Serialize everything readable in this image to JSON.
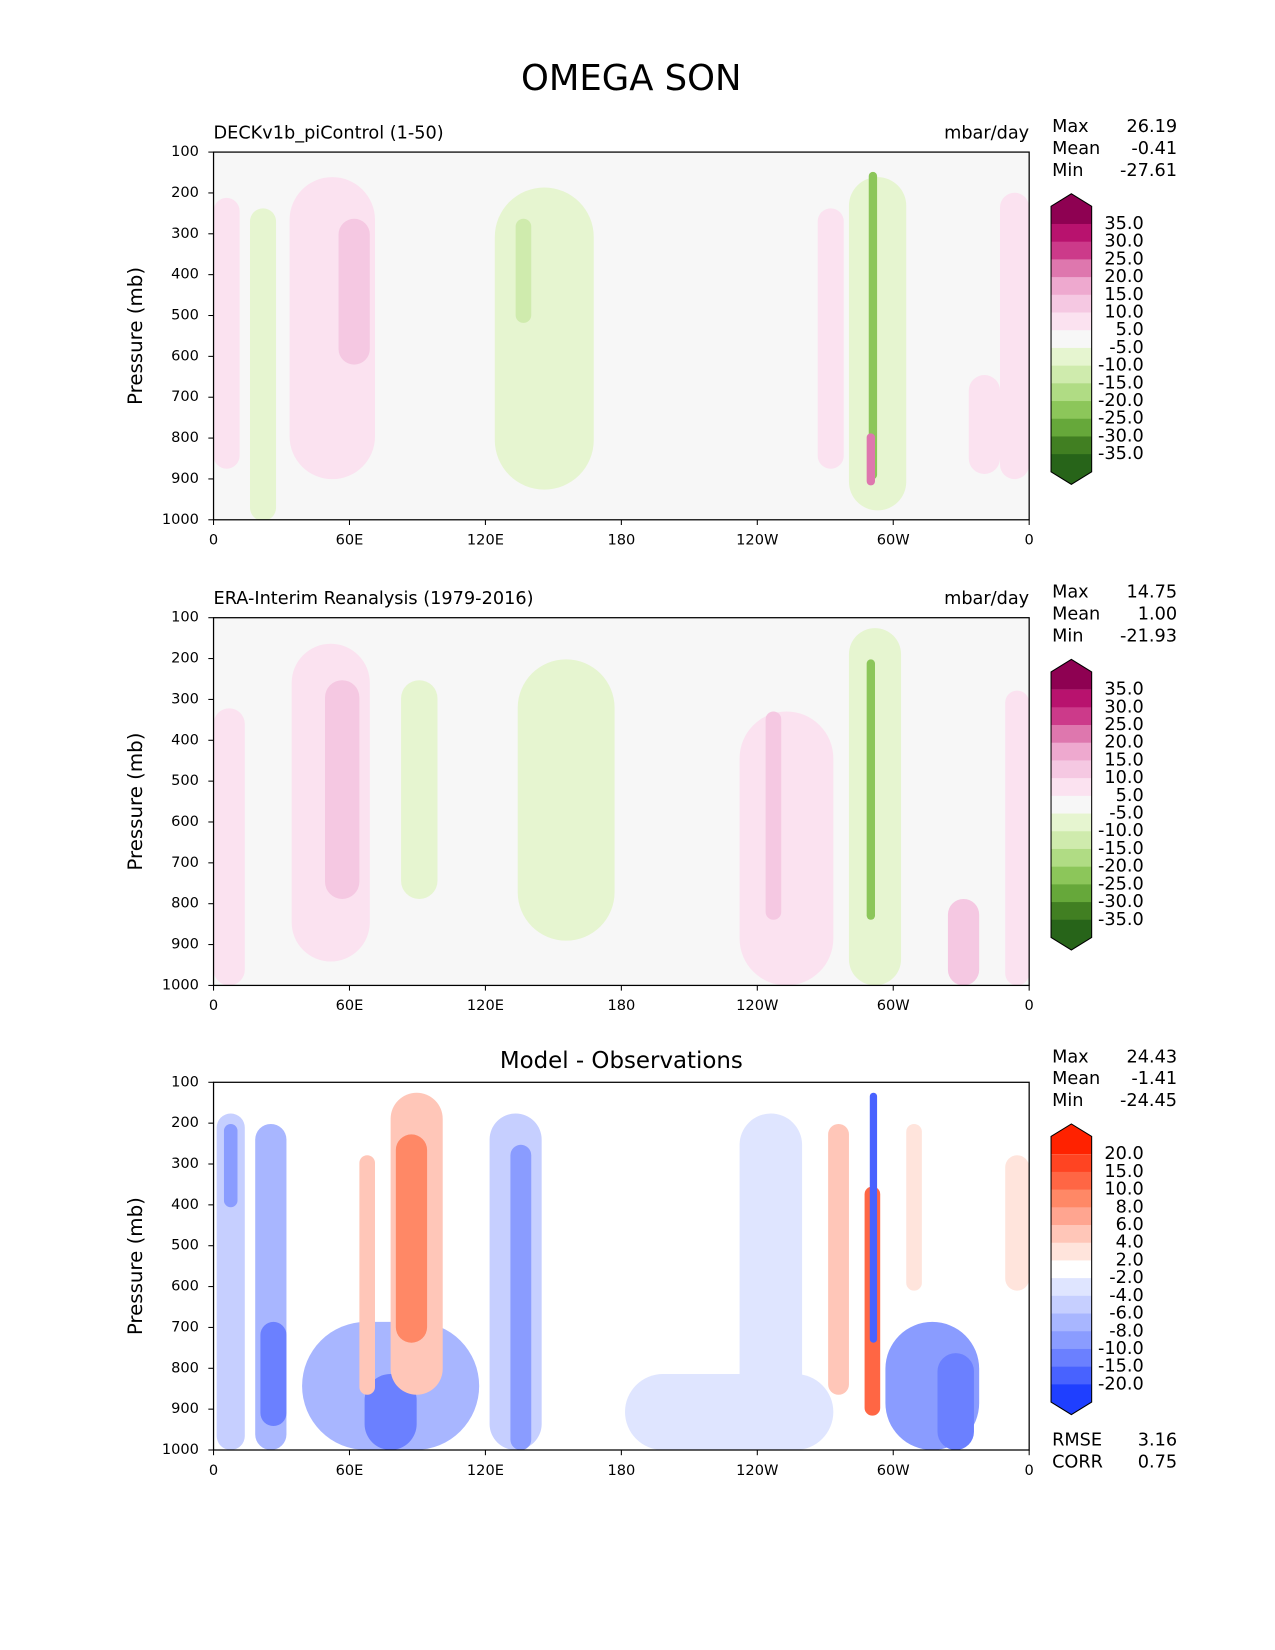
{
  "title": "OMEGA SON",
  "chart_data": [
    {
      "type": "contour",
      "title": "DECKv1b_piControl (1-50)",
      "title_align": "left",
      "units": "mbar/day",
      "ylabel": "Pressure (mb)",
      "background": "#f7f7f7",
      "xlim": [
        0,
        360
      ],
      "xticks": [
        0,
        {
          "value": 60,
          "label": "60E"
        },
        {
          "value": 120,
          "label": "120E"
        },
        180,
        {
          "value": 240,
          "label": "120W"
        },
        {
          "value": 300,
          "label": "60W"
        },
        {
          "value": 360,
          "label": "0"
        }
      ],
      "ylim": [
        1000,
        100
      ],
      "yticks": [
        100,
        200,
        300,
        400,
        500,
        600,
        700,
        800,
        900,
        1000
      ],
      "stats": [
        {
          "name": "Max",
          "value": 26.19
        },
        {
          "name": "Mean",
          "value": -0.41
        },
        {
          "name": "Min",
          "value": -27.61
        }
      ],
      "colorbar": {
        "levels": [
          {
            "value": 35,
            "label": "35.0"
          },
          {
            "value": 30,
            "label": "30.0"
          },
          {
            "value": 25,
            "label": "25.0"
          },
          {
            "value": 20,
            "label": "20.0"
          },
          {
            "value": 15,
            "label": "15.0"
          },
          {
            "value": 10,
            "label": "10.0"
          },
          {
            "value": 5,
            "label": "5.0"
          },
          {
            "value": -5,
            "label": "-5.0"
          },
          {
            "value": -10,
            "label": "-10.0"
          },
          {
            "value": -15,
            "label": "-15.0"
          },
          {
            "value": -20,
            "label": "-20.0"
          },
          {
            "value": -25,
            "label": "-25.0"
          },
          {
            "value": -30,
            "label": "-30.0"
          },
          {
            "value": -35,
            "label": "-35.0"
          }
        ],
        "colors": [
          "#8e0152",
          "#b8126e",
          "#cc3a8a",
          "#de77ae",
          "#eea9cf",
          "#f5c8e2",
          "#fbe2f0",
          "#f7f7f7",
          "#e6f5d0",
          "#cfebad",
          "#b0dc84",
          "#8cc65a",
          "#66a83a",
          "#417f22",
          "#276419"
        ]
      }
    },
    {
      "type": "contour",
      "title": "ERA-Interim Reanalysis (1979-2016)",
      "title_align": "left",
      "units": "mbar/day",
      "ylabel": "Pressure (mb)",
      "background": "#f7f7f7",
      "xlim": [
        0,
        360
      ],
      "xticks": [
        0,
        {
          "value": 60,
          "label": "60E"
        },
        {
          "value": 120,
          "label": "120E"
        },
        180,
        {
          "value": 240,
          "label": "120W"
        },
        {
          "value": 300,
          "label": "60W"
        },
        {
          "value": 360,
          "label": "0"
        }
      ],
      "ylim": [
        1000,
        100
      ],
      "yticks": [
        100,
        200,
        300,
        400,
        500,
        600,
        700,
        800,
        900,
        1000
      ],
      "stats": [
        {
          "name": "Max",
          "value": 14.75
        },
        {
          "name": "Mean",
          "value": 1,
          "label": "1.00"
        },
        {
          "name": "Min",
          "value": -21.93
        }
      ],
      "colorbar": {
        "levels": [
          {
            "value": 35,
            "label": "35.0"
          },
          {
            "value": 30,
            "label": "30.0"
          },
          {
            "value": 25,
            "label": "25.0"
          },
          {
            "value": 20,
            "label": "20.0"
          },
          {
            "value": 15,
            "label": "15.0"
          },
          {
            "value": 10,
            "label": "10.0"
          },
          {
            "value": 5,
            "label": "5.0"
          },
          {
            "value": -5,
            "label": "-5.0"
          },
          {
            "value": -10,
            "label": "-10.0"
          },
          {
            "value": -15,
            "label": "-15.0"
          },
          {
            "value": -20,
            "label": "-20.0"
          },
          {
            "value": -25,
            "label": "-25.0"
          },
          {
            "value": -30,
            "label": "-30.0"
          },
          {
            "value": -35,
            "label": "-35.0"
          }
        ],
        "colors": [
          "#8e0152",
          "#b8126e",
          "#cc3a8a",
          "#de77ae",
          "#eea9cf",
          "#f5c8e2",
          "#fbe2f0",
          "#f7f7f7",
          "#e6f5d0",
          "#cfebad",
          "#b0dc84",
          "#8cc65a",
          "#66a83a",
          "#417f22",
          "#276419"
        ]
      }
    },
    {
      "type": "contour",
      "title": "Model - Observations",
      "title_align": "center",
      "ylabel": "Pressure (mb)",
      "background": "#ffffff",
      "xlim": [
        0,
        360
      ],
      "xticks": [
        0,
        {
          "value": 60,
          "label": "60E"
        },
        {
          "value": 120,
          "label": "120E"
        },
        180,
        {
          "value": 240,
          "label": "120W"
        },
        {
          "value": 300,
          "label": "60W"
        },
        {
          "value": 360,
          "label": "0"
        }
      ],
      "ylim": [
        1000,
        100
      ],
      "yticks": [
        100,
        200,
        300,
        400,
        500,
        600,
        700,
        800,
        900,
        1000
      ],
      "stats": [
        {
          "name": "Max",
          "value": 24.43
        },
        {
          "name": "Mean",
          "value": -1.41
        },
        {
          "name": "Min",
          "value": -24.45
        }
      ],
      "metrics": [
        {
          "name": "RMSE",
          "value": 3.16
        },
        {
          "name": "CORR",
          "value": 0.75
        }
      ],
      "colorbar": {
        "levels": [
          {
            "value": 20,
            "label": "20.0"
          },
          {
            "value": 15,
            "label": "15.0"
          },
          {
            "value": 10,
            "label": "10.0"
          },
          {
            "value": 8,
            "label": "8.0"
          },
          {
            "value": 6,
            "label": "6.0"
          },
          {
            "value": 4,
            "label": "4.0"
          },
          {
            "value": 2,
            "label": "2.0"
          },
          {
            "value": -2,
            "label": "-2.0"
          },
          {
            "value": -4,
            "label": "-4.0"
          },
          {
            "value": -6,
            "label": "-6.0"
          },
          {
            "value": -8,
            "label": "-8.0"
          },
          {
            "value": -10,
            "label": "-10.0"
          },
          {
            "value": -15,
            "label": "-15.0"
          },
          {
            "value": -20,
            "label": "-20.0"
          }
        ],
        "colors": [
          "#ff2200",
          "#ff4422",
          "#ff6644",
          "#ff8866",
          "#ffa590",
          "#ffc6b8",
          "#ffe4dc",
          "#ffffff",
          "#dfe5ff",
          "#c6cfff",
          "#a8b6ff",
          "#8a9cff",
          "#6b80ff",
          "#4862ff",
          "#1f3fff"
        ]
      }
    }
  ]
}
